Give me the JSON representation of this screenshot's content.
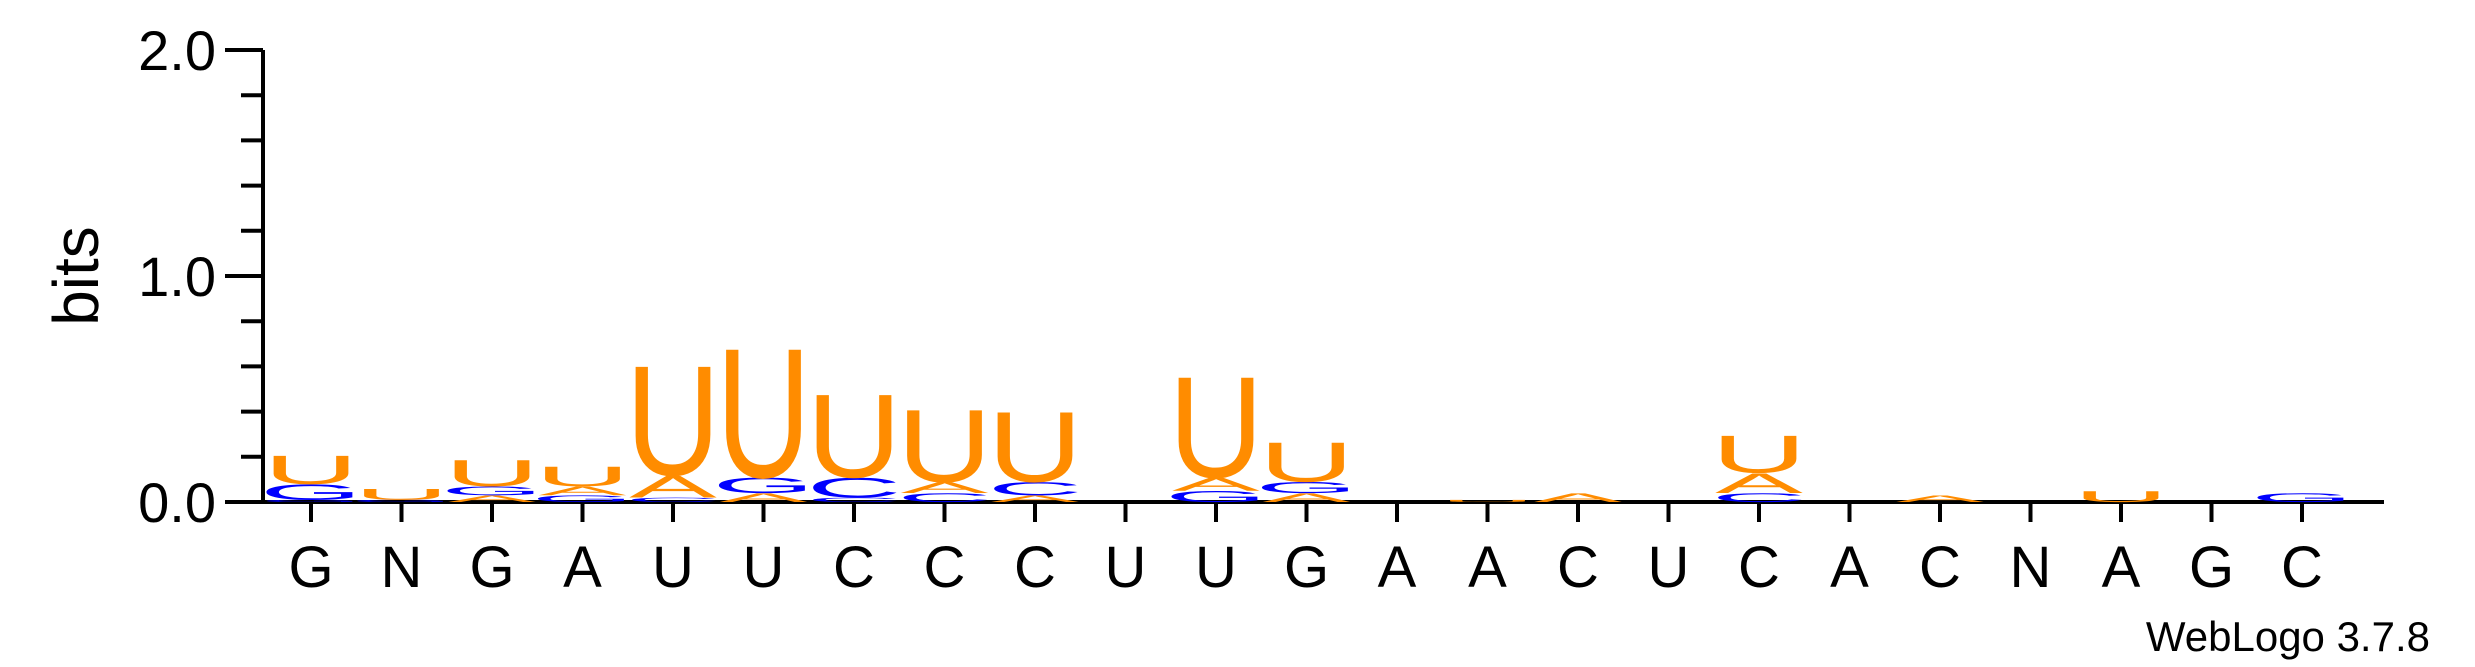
{
  "chart_data": {
    "type": "sequence-logo",
    "ylabel": "bits",
    "ylim": [
      0,
      2.0
    ],
    "yticks": [
      "0.0",
      "1.0",
      "2.0"
    ],
    "consensus": [
      "G",
      "N",
      "G",
      "A",
      "U",
      "U",
      "C",
      "C",
      "C",
      "U",
      "U",
      "G",
      "A",
      "A",
      "C",
      "U",
      "C",
      "A",
      "C",
      "N",
      "A",
      "G",
      "C"
    ],
    "credit": "WebLogo 3.7.8",
    "colors": {
      "U": "#ff8c00",
      "A": "#ff8c00",
      "G": "#0000ff",
      "C": "#0000ff"
    },
    "positions": [
      {
        "stack": [
          {
            "letter": "G",
            "bits": 0.01
          },
          {
            "letter": "G",
            "bits": 0.07
          },
          {
            "letter": "U",
            "bits": 0.13
          }
        ]
      },
      {
        "stack": [
          {
            "letter": "G",
            "bits": 0.01
          },
          {
            "letter": "U",
            "bits": 0.05
          }
        ]
      },
      {
        "stack": [
          {
            "letter": "A",
            "bits": 0.03
          },
          {
            "letter": "G",
            "bits": 0.04
          },
          {
            "letter": "U",
            "bits": 0.12
          }
        ]
      },
      {
        "stack": [
          {
            "letter": "G",
            "bits": 0.03
          },
          {
            "letter": "A",
            "bits": 0.04
          },
          {
            "letter": "U",
            "bits": 0.09
          }
        ]
      },
      {
        "stack": [
          {
            "letter": "C",
            "bits": 0.02
          },
          {
            "letter": "A",
            "bits": 0.1
          },
          {
            "letter": "U",
            "bits": 0.5
          }
        ]
      },
      {
        "stack": [
          {
            "letter": "A",
            "bits": 0.04
          },
          {
            "letter": "G",
            "bits": 0.07
          },
          {
            "letter": "U",
            "bits": 0.59
          }
        ]
      },
      {
        "stack": [
          {
            "letter": "C",
            "bits": 0.02
          },
          {
            "letter": "C",
            "bits": 0.09
          },
          {
            "letter": "U",
            "bits": 0.38
          }
        ]
      },
      {
        "stack": [
          {
            "letter": "C",
            "bits": 0.04
          },
          {
            "letter": "A",
            "bits": 0.05
          },
          {
            "letter": "U",
            "bits": 0.33
          }
        ]
      },
      {
        "stack": [
          {
            "letter": "A",
            "bits": 0.03
          },
          {
            "letter": "C",
            "bits": 0.06
          },
          {
            "letter": "U",
            "bits": 0.32
          }
        ]
      },
      {
        "stack": [
          {
            "letter": "G",
            "bits": 0.0
          }
        ]
      },
      {
        "stack": [
          {
            "letter": "G",
            "bits": 0.05
          },
          {
            "letter": "A",
            "bits": 0.06
          },
          {
            "letter": "U",
            "bits": 0.46
          }
        ]
      },
      {
        "stack": [
          {
            "letter": "A",
            "bits": 0.04
          },
          {
            "letter": "G",
            "bits": 0.05
          },
          {
            "letter": "U",
            "bits": 0.18
          }
        ]
      },
      {
        "stack": []
      },
      {
        "stack": [
          {
            "letter": "U",
            "bits": 0.01
          }
        ]
      },
      {
        "stack": [
          {
            "letter": "A",
            "bits": 0.04
          }
        ]
      },
      {
        "stack": []
      },
      {
        "stack": [
          {
            "letter": "C",
            "bits": 0.04
          },
          {
            "letter": "A",
            "bits": 0.09
          },
          {
            "letter": "U",
            "bits": 0.17
          }
        ]
      },
      {
        "stack": []
      },
      {
        "stack": [
          {
            "letter": "A",
            "bits": 0.03
          }
        ]
      },
      {
        "stack": []
      },
      {
        "stack": [
          {
            "letter": "U",
            "bits": 0.05
          }
        ]
      },
      {
        "stack": []
      },
      {
        "stack": [
          {
            "letter": "G",
            "bits": 0.04
          }
        ]
      }
    ]
  }
}
